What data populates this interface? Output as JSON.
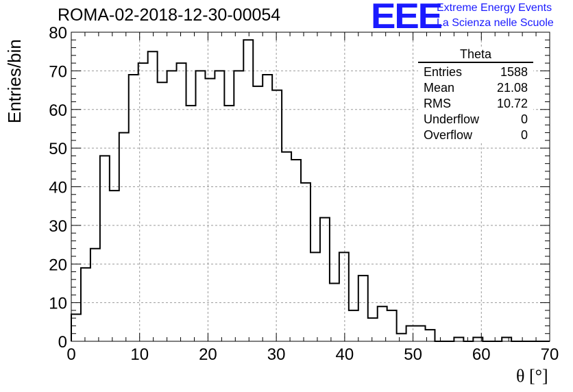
{
  "header": {
    "title": "ROMA-02-2018-12-30-00054",
    "logo_text": "EEE",
    "logo_line1": "Extreme Energy Events",
    "logo_line2": "La Scienza nelle Scuole"
  },
  "stats_box": {
    "name": "Theta",
    "rows": [
      {
        "label": "Entries",
        "value": "1588"
      },
      {
        "label": "Mean",
        "value": "21.08"
      },
      {
        "label": "RMS",
        "value": "10.72"
      },
      {
        "label": "Underflow",
        "value": "0"
      },
      {
        "label": "Overflow",
        "value": "0"
      }
    ]
  },
  "chart_data": {
    "type": "bar",
    "histogram": true,
    "title": "ROMA-02-2018-12-30-00054",
    "xlabel": "θ [°]",
    "ylabel": "Entries/bin",
    "xlim": [
      0,
      70
    ],
    "ylim": [
      0,
      80
    ],
    "bin_width": 1.4,
    "bin_edges_start": 0,
    "values": [
      7,
      19,
      24,
      48,
      39,
      54,
      69,
      72,
      75,
      67,
      70,
      72,
      61,
      70,
      68,
      70,
      61,
      70,
      78,
      66,
      69,
      65,
      49,
      47,
      41,
      23,
      32,
      15,
      23,
      8,
      17,
      6,
      9,
      8,
      2,
      4,
      4,
      3,
      0,
      0,
      1,
      0,
      1,
      0,
      0,
      1,
      0,
      0,
      0,
      0
    ],
    "xticks": [
      0,
      10,
      20,
      30,
      40,
      50,
      60,
      70
    ],
    "yticks": [
      0,
      10,
      20,
      30,
      40,
      50,
      60,
      70,
      80
    ],
    "grid": true,
    "line_color": "#000000"
  }
}
